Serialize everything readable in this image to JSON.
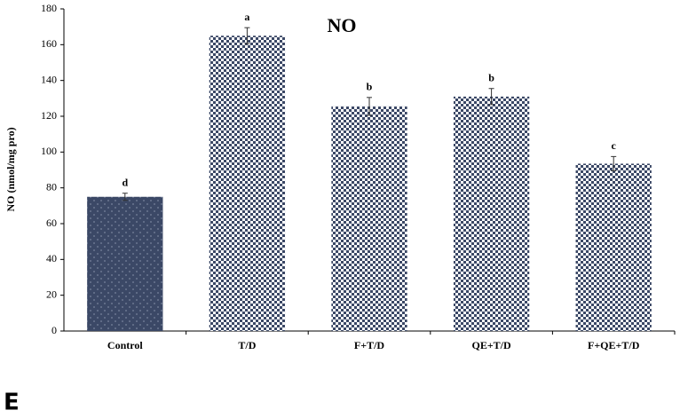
{
  "panel_label": "E",
  "chart_data": {
    "type": "bar",
    "title": "NO",
    "y_label": "NO (nmol/mg pro)",
    "categories": [
      "Control",
      "T/D",
      "F+T/D",
      "QE+T/D",
      "F+QE+T/D"
    ],
    "values": [
      75,
      165,
      125.5,
      131,
      93.5
    ],
    "errors": [
      2,
      4.5,
      5,
      4.5,
      4
    ],
    "letters": [
      "d",
      "a",
      "b",
      "b",
      "c"
    ],
    "colors": [
      "#3b4866",
      "#3b4866",
      "#3b4866",
      "#3b4866",
      "#3b4866"
    ],
    "ylim": [
      0,
      180
    ],
    "yticks": [
      0,
      20,
      40,
      60,
      80,
      100,
      120,
      140,
      160,
      180
    ],
    "grid": false
  }
}
